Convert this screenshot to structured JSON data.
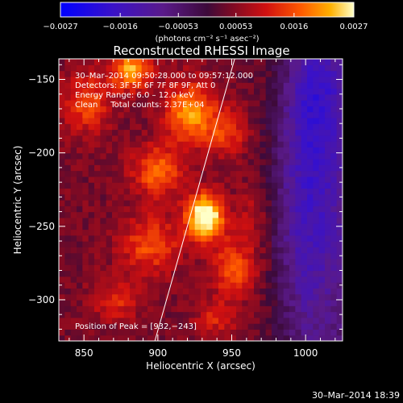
{
  "chart_data": {
    "type": "heatmap",
    "title": "Reconstructed RHESSI Image",
    "xlabel": "Heliocentric X (arcsec)",
    "ylabel": "Heliocentric Y (arcsec)",
    "xlim": [
      833,
      1025
    ],
    "ylim": [
      -328,
      -136
    ],
    "x_ticks": [
      850,
      900,
      950,
      1000
    ],
    "y_ticks": [
      -150,
      -200,
      -250,
      -300
    ],
    "x_tick_labels": [
      "850",
      "900",
      "950",
      "1000"
    ],
    "y_tick_labels": [
      "−150",
      "−200",
      "−250",
      "−300"
    ],
    "colorbar": {
      "min": -0.0027,
      "max": 0.0027,
      "tick_values": [
        -0.0027,
        -0.0016,
        -0.00053,
        0.00053,
        0.0016,
        0.0027
      ],
      "tick_labels": [
        "−0.0027",
        "−0.0016",
        "−0.00053",
        "0.00053",
        "0.0016",
        "0.0027"
      ],
      "unit_label": "(photons cm⁻² s⁻¹ asec⁻²)"
    },
    "info": {
      "time_range": "30–Mar–2014 09:50:28.000 to 09:57:12.000",
      "detectors": "Detectors: 3F 5F 6F 7F 8F 9F, Att 0",
      "energy": "Energy Range: 6.0 – 12.0 keV",
      "method": "Clean     Total counts: 2.37E+04"
    },
    "peak_label": "Position of Peak = [932,−243]",
    "peak": [
      932,
      -243
    ],
    "sources": [
      {
        "x": 932,
        "y": -243,
        "amp": 0.0027,
        "sx": 9,
        "sy": 11
      },
      {
        "x": 882,
        "y": -143,
        "amp": 0.0018,
        "sx": 10,
        "sy": 10
      },
      {
        "x": 922,
        "y": -172,
        "amp": 0.0017,
        "sx": 12,
        "sy": 15
      },
      {
        "x": 852,
        "y": -166,
        "amp": 0.0012,
        "sx": 11,
        "sy": 14
      },
      {
        "x": 900,
        "y": -212,
        "amp": 0.0014,
        "sx": 12,
        "sy": 12
      },
      {
        "x": 952,
        "y": -278,
        "amp": 0.0013,
        "sx": 11,
        "sy": 14
      },
      {
        "x": 895,
        "y": -262,
        "amp": 0.0012,
        "sx": 14,
        "sy": 14
      },
      {
        "x": 947,
        "y": -186,
        "amp": 0.001,
        "sx": 10,
        "sy": 12
      },
      {
        "x": 872,
        "y": -300,
        "amp": 0.0009,
        "sx": 11,
        "sy": 10
      },
      {
        "x": 940,
        "y": -312,
        "amp": 0.0008,
        "sx": 10,
        "sy": 8
      },
      {
        "x": 965,
        "y": -240,
        "amp": 0.0006,
        "sx": 8,
        "sy": 16
      },
      {
        "x": 1002,
        "y": -230,
        "amp": -0.0012,
        "sx": 20,
        "sy": 70
      },
      {
        "x": 1010,
        "y": -160,
        "amp": -0.0008,
        "sx": 14,
        "sy": 30
      }
    ],
    "limb_line": [
      [
        898,
        -328
      ],
      [
        952,
        -136
      ]
    ],
    "grid": false
  },
  "footer": {
    "timestamp": "30–Mar–2014 18:39"
  }
}
